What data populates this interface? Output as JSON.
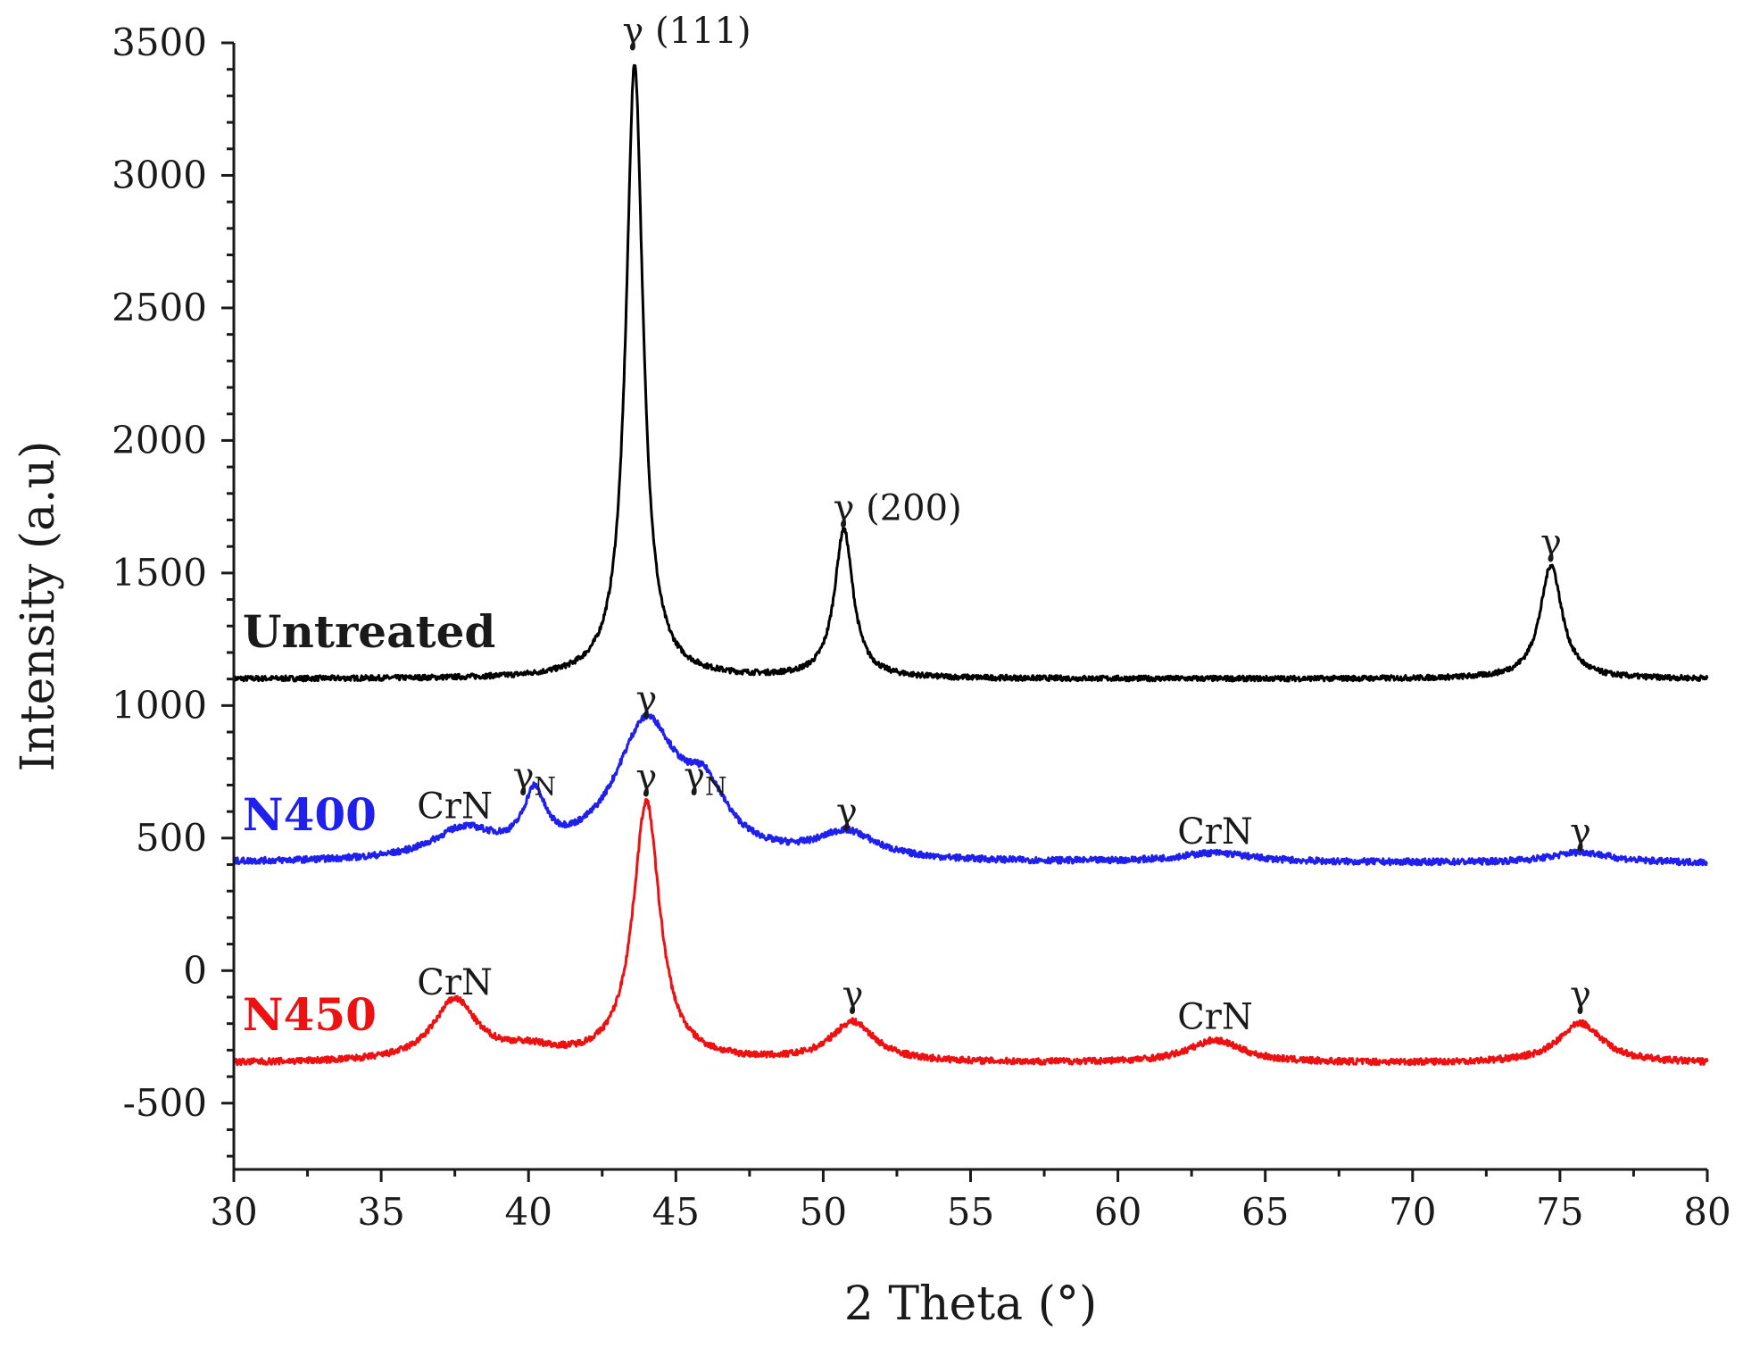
{
  "chart_data": {
    "type": "line",
    "title": "",
    "xlabel": "2 Theta (°)",
    "ylabel": "Intensity (a.u)",
    "xlim": [
      30,
      80
    ],
    "ylim": [
      -750,
      3500
    ],
    "x_ticks": [
      30,
      35,
      40,
      45,
      50,
      55,
      60,
      65,
      70,
      75,
      80
    ],
    "y_ticks": [
      -500,
      0,
      500,
      1000,
      1500,
      2000,
      2500,
      3000,
      3500
    ],
    "x_tick_labels": [
      "30",
      "35",
      "40",
      "45",
      "50",
      "55",
      "60",
      "65",
      "70",
      "75",
      "80"
    ],
    "y_tick_labels": [
      "-500",
      "0",
      "500",
      "1000",
      "1500",
      "2000",
      "2500",
      "3000",
      "3500"
    ],
    "series": [
      {
        "name": "Untreated",
        "color": "#000000",
        "baseline": 1100,
        "noise": 10,
        "peaks": [
          {
            "center": 43.6,
            "height": 2320,
            "width": 0.35
          },
          {
            "center": 50.7,
            "height": 560,
            "width": 0.38
          },
          {
            "center": 74.7,
            "height": 430,
            "width": 0.45
          }
        ]
      },
      {
        "name": "N400",
        "color": "#1f1fee",
        "baseline": 405,
        "noise": 12,
        "peaks": [
          {
            "center": 37.8,
            "height": 110,
            "width": 1.3
          },
          {
            "center": 40.2,
            "height": 210,
            "width": 0.45
          },
          {
            "center": 44.0,
            "height": 510,
            "width": 1.3
          },
          {
            "center": 46.0,
            "height": 200,
            "width": 0.9
          },
          {
            "center": 50.8,
            "height": 100,
            "width": 1.2
          },
          {
            "center": 63.3,
            "height": 35,
            "width": 1.5
          },
          {
            "center": 75.7,
            "height": 40,
            "width": 1.2
          }
        ]
      },
      {
        "name": "N450",
        "color": "#ee1111",
        "baseline": -350,
        "noise": 12,
        "peaks": [
          {
            "center": 37.5,
            "height": 230,
            "width": 0.9
          },
          {
            "center": 40.0,
            "height": 40,
            "width": 1.2
          },
          {
            "center": 44.0,
            "height": 980,
            "width": 0.55
          },
          {
            "center": 51.0,
            "height": 150,
            "width": 0.9
          },
          {
            "center": 63.3,
            "height": 85,
            "width": 1.1
          },
          {
            "center": 75.7,
            "height": 150,
            "width": 0.9
          }
        ]
      }
    ],
    "series_labels": [
      {
        "text": "Untreated",
        "color": "#1a1a1a"
      },
      {
        "text": "N400",
        "color": "#1f1fee"
      },
      {
        "text": "N450",
        "color": "#ee1111"
      }
    ],
    "annotations": [
      {
        "text": "γ (111)",
        "x": 43.55,
        "y": 3500
      },
      {
        "text": "γ (200)",
        "x": 50.7,
        "y": 1700
      },
      {
        "text": "γ",
        "x": 74.7,
        "y": 1570
      },
      {
        "text": "γ",
        "x": 44.0,
        "y": 980
      },
      {
        "text": "γN",
        "x": 40.2,
        "y": 690
      },
      {
        "text": "γN",
        "x": 46.0,
        "y": 690
      },
      {
        "text": "γ",
        "x": 44.0,
        "y": 685
      },
      {
        "text": "CrN",
        "x": 37.5,
        "y": 575
      },
      {
        "text": "γ",
        "x": 50.8,
        "y": 555
      },
      {
        "text": "CrN",
        "x": 63.3,
        "y": 480
      },
      {
        "text": "γ",
        "x": 75.7,
        "y": 480
      },
      {
        "text": "CrN",
        "x": 37.5,
        "y": -90
      },
      {
        "text": "γ",
        "x": 51.0,
        "y": -135
      },
      {
        "text": "CrN",
        "x": 63.3,
        "y": -220
      },
      {
        "text": "γ",
        "x": 75.7,
        "y": -135
      }
    ]
  }
}
